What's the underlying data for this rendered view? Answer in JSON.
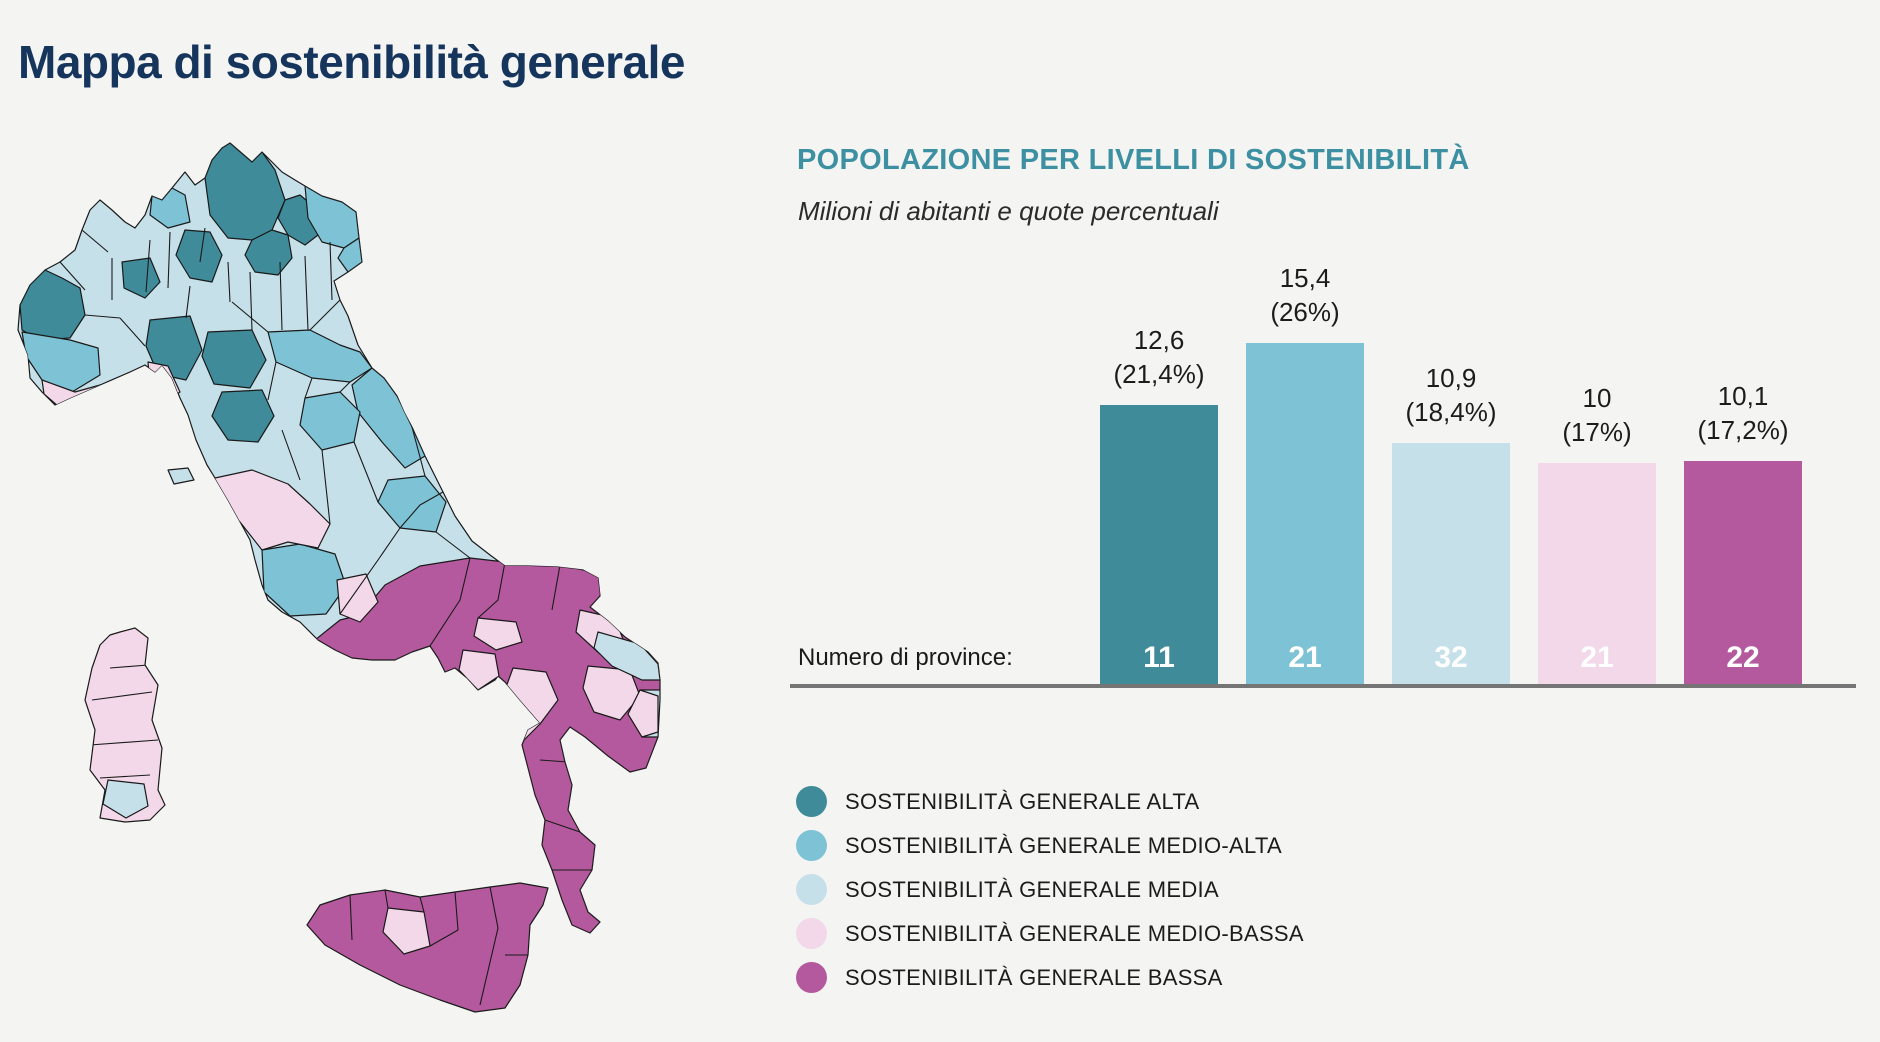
{
  "page": {
    "title": "Mappa di sostenibilità generale",
    "background": "#f4f4f3"
  },
  "colors": {
    "alta": "#3f8b99",
    "medio_alta": "#7ec2d5",
    "media": "#c6e0e9",
    "medio_bassa": "#f2d8e8",
    "bassa": "#b4599d"
  },
  "chart_data": {
    "type": "bar",
    "title": "POPOLAZIONE PER LIVELLI DI SOSTENIBILITÀ",
    "subtitle": "Milioni di abitanti e quote percentuali",
    "categories": [
      "SOSTENIBILITÀ GENERALE ALTA",
      "SOSTENIBILITÀ GENERALE MEDIO-ALTA",
      "SOSTENIBILITÀ GENERALE MEDIA",
      "SOSTENIBILITÀ GENERALE MEDIO-BASSA",
      "SOSTENIBILITÀ GENERALE BASSA"
    ],
    "bars": [
      {
        "level": "alta",
        "value": 12.6,
        "value_label": "12,6",
        "pct_label": "(21,4%)",
        "province_count": "11"
      },
      {
        "level": "medio_alta",
        "value": 15.4,
        "value_label": "15,4",
        "pct_label": "(26%)",
        "province_count": "21"
      },
      {
        "level": "media",
        "value": 10.9,
        "value_label": "10,9",
        "pct_label": "(18,4%)",
        "province_count": "32"
      },
      {
        "level": "medio_bassa",
        "value": 10.0,
        "value_label": "10",
        "pct_label": "(17%)",
        "province_count": "21"
      },
      {
        "level": "bassa",
        "value": 10.1,
        "value_label": "10,1",
        "pct_label": "(17,2%)",
        "province_count": "22"
      }
    ],
    "series": [
      {
        "name": "Milioni di abitanti",
        "values": [
          12.6,
          15.4,
          10.9,
          10,
          10.1
        ]
      },
      {
        "name": "Quota percentuale",
        "values": [
          21.4,
          26,
          18.4,
          17,
          17.2
        ]
      },
      {
        "name": "Numero di province",
        "values": [
          11,
          21,
          32,
          21,
          22
        ]
      }
    ],
    "axis_label": "Numero di province:",
    "ylim": [
      0,
      16
    ],
    "grid": false,
    "legend_position": "bottom-left"
  },
  "legend": {
    "items": [
      {
        "label": "SOSTENIBILITÀ GENERALE ALTA",
        "level": "alta"
      },
      {
        "label": "SOSTENIBILITÀ GENERALE MEDIO-ALTA",
        "level": "medio_alta"
      },
      {
        "label": "SOSTENIBILITÀ GENERALE MEDIA",
        "level": "media"
      },
      {
        "label": "SOSTENIBILITÀ GENERALE MEDIO-BASSA",
        "level": "medio_bassa"
      },
      {
        "label": "SOSTENIBILITÀ GENERALE BASSA",
        "level": "bassa"
      }
    ]
  },
  "map": {
    "name": "italy-province-choropleth",
    "levels": [
      "alta",
      "medio_alta",
      "media",
      "medio_bassa",
      "bassa"
    ]
  }
}
